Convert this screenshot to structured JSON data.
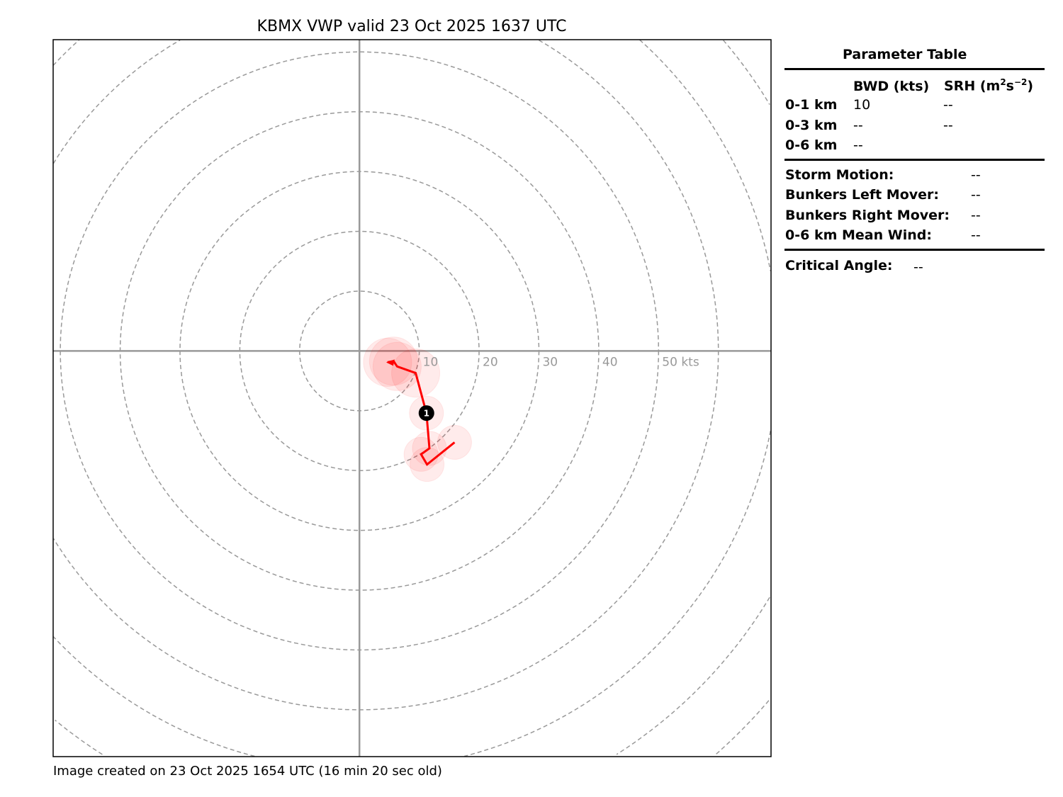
{
  "chart_data": {
    "type": "line",
    "title": "KBMX VWP valid 23 Oct 2025 1637 UTC",
    "footer": "Image created on 23 Oct 2025 1654 UTC (16 min 20 sec old)",
    "xlim": [
      -51.2,
      68.8
    ],
    "ylim": [
      -67.9,
      52.1
    ],
    "ring_spacing_kts": 10,
    "ring_labels": [
      "10",
      "20",
      "30",
      "40",
      "50 kts"
    ],
    "grid": true,
    "colors": {
      "hodograph": "#ff0000",
      "rings": "#999999",
      "axes": "#999999",
      "marker": "#000000"
    },
    "series": [
      {
        "u": [
          4.7,
          5.7,
          6.3,
          9.4,
          11.2,
          11.7,
          10.3,
          11.3,
          15.9
        ],
        "v": [
          -1.9,
          -1.7,
          -2.6,
          -3.7,
          -10.4,
          -16.3,
          -17.3,
          -19.0,
          -15.3
        ]
      }
    ],
    "height_markers": [
      {
        "label": "1",
        "u": 11.2,
        "v": -10.4
      }
    ]
  },
  "param_table": {
    "title": "Parameter Table",
    "col_headers": [
      "BWD (kts)",
      "SRH (m",
      "2",
      "s",
      "−2",
      ")"
    ],
    "rows": [
      {
        "label": "0-1 km",
        "bwd": "10",
        "srh": "--"
      },
      {
        "label": "0-3 km",
        "bwd": "--",
        "srh": "--"
      },
      {
        "label": "0-6 km",
        "bwd": "--"
      }
    ],
    "motion": [
      {
        "label": "Storm Motion:",
        "value": "--"
      },
      {
        "label": "Bunkers Left Mover:",
        "value": "--"
      },
      {
        "label": "Bunkers Right Mover:",
        "value": "--"
      },
      {
        "label": "0-6 km Mean Wind:",
        "value": "--"
      }
    ],
    "critical_angle": {
      "label": "Critical Angle:",
      "value": "--"
    }
  }
}
